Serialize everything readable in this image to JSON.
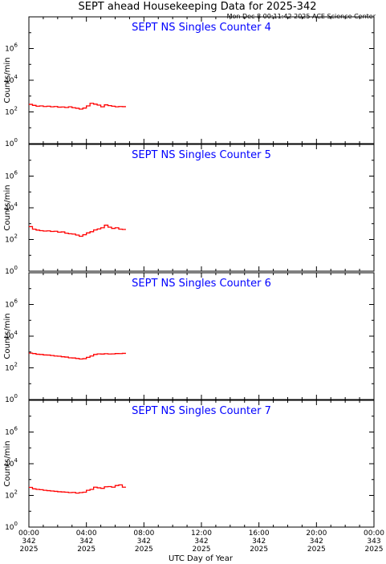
{
  "header": {
    "title": "SEPT ahead Housekeeping Data for 2025-342",
    "timestamp": "Mon Dec  8 00:11:42 2025 ACE Science Center"
  },
  "xaxis_label": "UTC Day of Year",
  "colors": {
    "trace": "#ff0000",
    "panel_title": "#0000ff",
    "axes": "#000000"
  },
  "x_ticks": [
    {
      "x": 0,
      "time": "00:00",
      "day": "342",
      "year": "2025"
    },
    {
      "x": 4,
      "time": "04:00",
      "day": "342",
      "year": "2025"
    },
    {
      "x": 8,
      "time": "08:00",
      "day": "342",
      "year": "2025"
    },
    {
      "x": 12,
      "time": "12:00",
      "day": "342",
      "year": "2025"
    },
    {
      "x": 16,
      "time": "16:00",
      "day": "342",
      "year": "2025"
    },
    {
      "x": 20,
      "time": "20:00",
      "day": "342",
      "year": "2025"
    },
    {
      "x": 24,
      "time": "00:00",
      "day": "343",
      "year": "2025"
    }
  ],
  "chart_data": [
    {
      "type": "line",
      "title": "SEPT NS Singles Counter 4",
      "ylabel": "Counts/min",
      "yscale": "log",
      "ylim": [
        1,
        100000000
      ],
      "yticks": [
        {
          "exp": 0,
          "base": "10",
          "sup": "0"
        },
        {
          "exp": 2,
          "base": "10",
          "sup": "2"
        },
        {
          "exp": 4,
          "base": "10",
          "sup": "4"
        },
        {
          "exp": 6,
          "base": "10",
          "sup": "6"
        }
      ],
      "xlim": [
        0,
        24
      ],
      "series": [
        {
          "x": [
            0,
            0.25,
            0.5,
            0.75,
            1,
            1.25,
            1.5,
            1.75,
            2,
            2.25,
            2.5,
            2.75,
            3,
            3.25,
            3.5,
            3.75,
            4,
            4.25,
            4.5,
            4.75,
            5,
            5.25,
            5.5,
            5.75,
            6,
            6.25,
            6.5
          ],
          "y": [
            300,
            260,
            230,
            240,
            220,
            230,
            210,
            220,
            200,
            205,
            190,
            210,
            185,
            170,
            150,
            175,
            240,
            350,
            310,
            270,
            210,
            280,
            250,
            230,
            210,
            220,
            215
          ]
        }
      ]
    },
    {
      "type": "line",
      "title": "SEPT NS Singles Counter 5",
      "ylabel": "Counts/min",
      "yscale": "log",
      "ylim": [
        1,
        100000000
      ],
      "yticks": [
        {
          "exp": 0,
          "base": "10",
          "sup": "0"
        },
        {
          "exp": 2,
          "base": "10",
          "sup": "2"
        },
        {
          "exp": 4,
          "base": "10",
          "sup": "4"
        },
        {
          "exp": 6,
          "base": "10",
          "sup": "6"
        }
      ],
      "xlim": [
        0,
        24
      ],
      "series": [
        {
          "x": [
            0,
            0.25,
            0.5,
            0.75,
            1,
            1.25,
            1.5,
            1.75,
            2,
            2.25,
            2.5,
            2.75,
            3,
            3.25,
            3.5,
            3.75,
            4,
            4.25,
            4.5,
            4.75,
            5,
            5.25,
            5.5,
            5.75,
            6,
            6.25,
            6.5
          ],
          "y": [
            650,
            450,
            390,
            360,
            340,
            350,
            320,
            330,
            290,
            300,
            250,
            230,
            220,
            190,
            160,
            200,
            260,
            310,
            400,
            460,
            550,
            800,
            600,
            500,
            550,
            450,
            430
          ]
        }
      ]
    },
    {
      "type": "line",
      "title": "SEPT NS Singles Counter 6",
      "ylabel": "Counts/min",
      "yscale": "log",
      "ylim": [
        1,
        100000000
      ],
      "yticks": [
        {
          "exp": 0,
          "base": "10",
          "sup": "0"
        },
        {
          "exp": 2,
          "base": "10",
          "sup": "2"
        },
        {
          "exp": 4,
          "base": "10",
          "sup": "4"
        },
        {
          "exp": 6,
          "base": "10",
          "sup": "6"
        }
      ],
      "xlim": [
        0,
        24
      ],
      "series": [
        {
          "x": [
            0,
            0.25,
            0.5,
            0.75,
            1,
            1.25,
            1.5,
            1.75,
            2,
            2.25,
            2.5,
            2.75,
            3,
            3.25,
            3.5,
            3.75,
            4,
            4.25,
            4.5,
            4.75,
            5,
            5.25,
            5.5,
            5.75,
            6,
            6.25,
            6.5
          ],
          "y": [
            850,
            800,
            720,
            700,
            650,
            640,
            600,
            560,
            540,
            500,
            480,
            430,
            420,
            390,
            360,
            380,
            460,
            560,
            700,
            760,
            740,
            780,
            750,
            760,
            800,
            790,
            820
          ]
        }
      ]
    },
    {
      "type": "line",
      "title": "SEPT NS Singles Counter 7",
      "ylabel": "Counts/min",
      "yscale": "log",
      "ylim": [
        1,
        100000000
      ],
      "yticks": [
        {
          "exp": 0,
          "base": "10",
          "sup": "0"
        },
        {
          "exp": 2,
          "base": "10",
          "sup": "2"
        },
        {
          "exp": 4,
          "base": "10",
          "sup": "4"
        },
        {
          "exp": 6,
          "base": "10",
          "sup": "6"
        }
      ],
      "xlim": [
        0,
        24
      ],
      "series": [
        {
          "x": [
            0,
            0.25,
            0.5,
            0.75,
            1,
            1.25,
            1.5,
            1.75,
            2,
            2.25,
            2.5,
            2.75,
            3,
            3.25,
            3.5,
            3.75,
            4,
            4.25,
            4.5,
            4.75,
            5,
            5.25,
            5.5,
            5.75,
            6,
            6.25,
            6.5
          ],
          "y": [
            320,
            260,
            240,
            230,
            210,
            200,
            190,
            180,
            170,
            165,
            160,
            150,
            155,
            140,
            150,
            160,
            210,
            240,
            330,
            300,
            280,
            350,
            360,
            330,
            420,
            460,
            330
          ]
        }
      ]
    }
  ]
}
